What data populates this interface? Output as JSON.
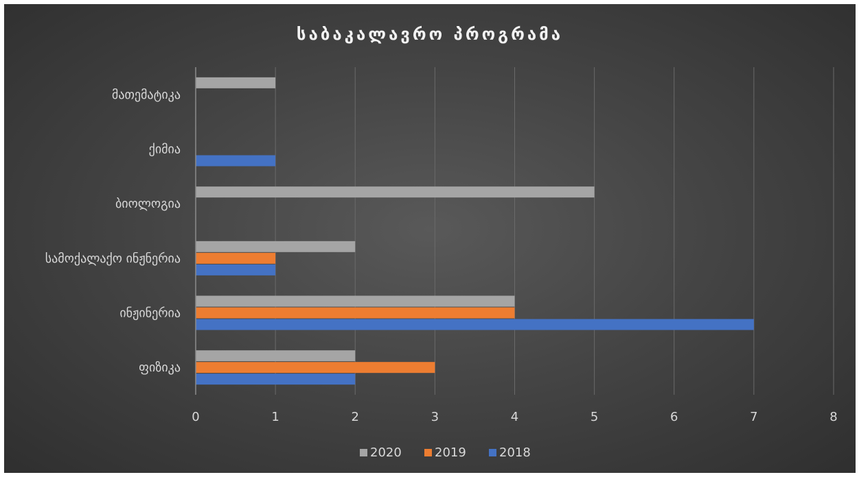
{
  "chart_data": {
    "type": "bar",
    "orientation": "horizontal",
    "title": "საბაკალავრო პროგრამა",
    "categories": [
      "ფიზიკა",
      "ინჟინერია",
      "სამოქალაქო ინჟნერია",
      "ბიოლოგია",
      "ქიმია",
      "მათემატიკა"
    ],
    "series": [
      {
        "name": "2018",
        "color": "#4472c4",
        "values": [
          2,
          7,
          1,
          0,
          1,
          0
        ]
      },
      {
        "name": "2019",
        "color": "#ed7d31",
        "values": [
          3,
          4,
          1,
          0,
          0,
          0
        ]
      },
      {
        "name": "2020",
        "color": "#a5a5a5",
        "values": [
          2,
          4,
          2,
          5,
          0,
          1
        ]
      }
    ],
    "xlim": [
      0,
      8
    ],
    "xticks": [
      "0",
      "1",
      "2",
      "3",
      "4",
      "5",
      "6",
      "7",
      "8"
    ],
    "grid": true,
    "legend_position": "bottom",
    "legend_order": [
      "2020",
      "2019",
      "2018"
    ]
  }
}
